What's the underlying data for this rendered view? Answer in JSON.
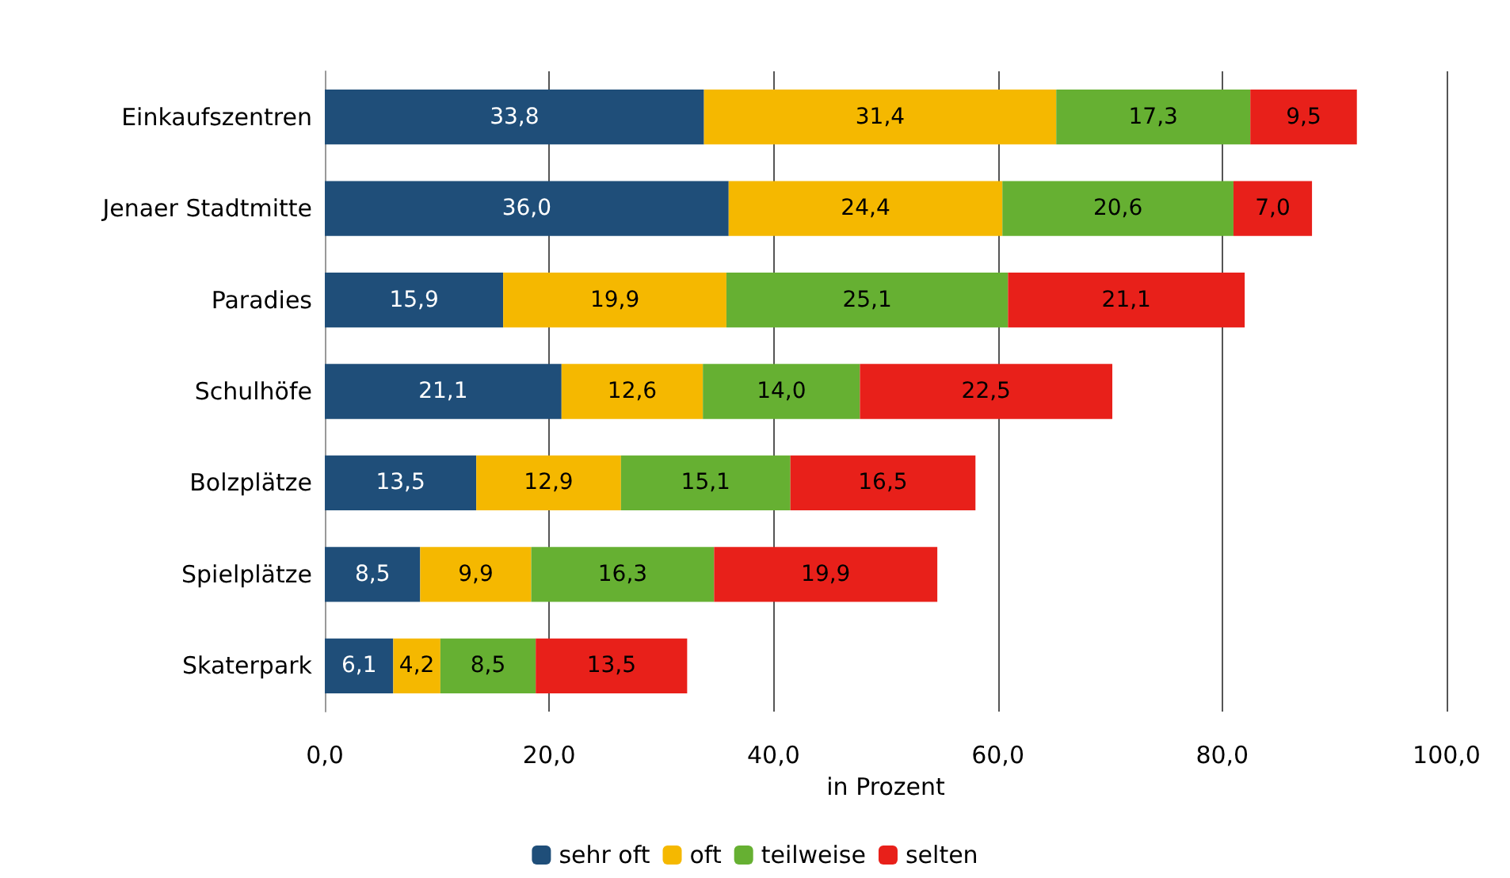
{
  "chart_data": {
    "type": "bar",
    "orientation": "horizontal",
    "stacked": true,
    "categories": [
      "Einkaufszentren",
      "Jenaer Stadtmitte",
      "Paradies",
      "Schulhöfe",
      "Bolzplätze",
      "Spielplätze",
      "Skaterpark"
    ],
    "series": [
      {
        "name": "sehr oft",
        "color": "#1f4e79",
        "values": [
          33.8,
          36.0,
          15.9,
          21.1,
          13.5,
          8.5,
          6.1
        ],
        "value_labels": [
          "33,8",
          "36,0",
          "15,9",
          "21,1",
          "13,5",
          "8,5",
          "6,1"
        ]
      },
      {
        "name": "oft",
        "color": "#f5b800",
        "values": [
          31.4,
          24.4,
          19.9,
          12.6,
          12.9,
          9.9,
          4.2
        ],
        "value_labels": [
          "31,4",
          "24,4",
          "19,9",
          "12,6",
          "12,9",
          "9,9",
          "4,2"
        ]
      },
      {
        "name": "teilweise",
        "color": "#66b032",
        "values": [
          17.3,
          20.6,
          25.1,
          14.0,
          15.1,
          16.3,
          8.5
        ],
        "value_labels": [
          "17,3",
          "20,6",
          "25,1",
          "14,0",
          "15,1",
          "16,3",
          "8,5"
        ]
      },
      {
        "name": "selten",
        "color": "#e8201a",
        "values": [
          9.5,
          7.0,
          21.1,
          22.5,
          16.5,
          19.9,
          13.5
        ],
        "value_labels": [
          "9,5",
          "7,0",
          "21,1",
          "22,5",
          "16,5",
          "19,9",
          "13,5"
        ]
      }
    ],
    "xlabel": "in Prozent",
    "xlim": [
      0,
      100
    ],
    "xticks": [
      {
        "value": 0,
        "label": "0,0"
      },
      {
        "value": 20,
        "label": "20,0"
      },
      {
        "value": 40,
        "label": "40,0"
      },
      {
        "value": 60,
        "label": "60,0"
      },
      {
        "value": 80,
        "label": "80,0"
      },
      {
        "value": 100,
        "label": "100,0"
      }
    ],
    "grid": "x",
    "legend": "bottom"
  }
}
